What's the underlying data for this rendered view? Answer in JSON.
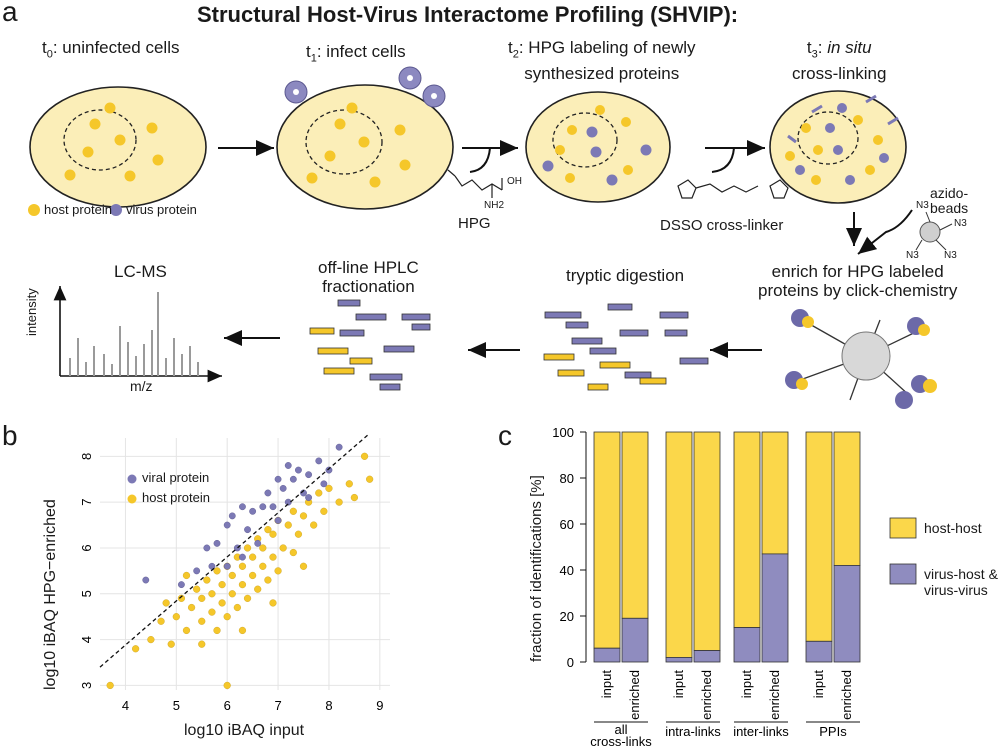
{
  "panel_a": {
    "letter": "a",
    "title": "Structural Host-Virus Interactome Profiling (SHVIP):",
    "steps": {
      "t0": {
        "sub": "0",
        "text": ": uninfected cells"
      },
      "t1": {
        "sub": "1",
        "text": ": infect cells"
      },
      "t2": {
        "sub": "2",
        "line1": ": HPG labeling of newly",
        "line2": "synthesized proteins"
      },
      "t3": {
        "sub": "3",
        "line1_pre": ": ",
        "line1_italic": "in situ",
        "line2": "cross-linking"
      }
    },
    "legend": {
      "host": "host protein",
      "virus": "virus protein"
    },
    "reagents": {
      "hpg": "HPG",
      "dsso": "DSSO cross-linker",
      "beads_line1": "azido-",
      "beads_line2": "beads",
      "oh": "OH",
      "nh2": "NH2",
      "n3": "N3"
    },
    "bottom_steps": {
      "enrich_line1": "enrich for HPG labeled",
      "enrich_line2": "proteins by click-chemistry",
      "tryptic": "tryptic digestion",
      "hplc_line1": "off-line HPLC",
      "hplc_line2": "fractionation",
      "lcms": "LC-MS",
      "lcms_x": "m/z",
      "lcms_y": "intensity"
    },
    "colors": {
      "cell": "#fbeeb8",
      "host": "#f5c72a",
      "virus": "#7c79b5"
    }
  },
  "panel_b": {
    "letter": "b",
    "xlabel": "log10 iBAQ input",
    "ylabel": "log10 iBAQ HPG−enriched",
    "legend": [
      "viral protein",
      "host protein"
    ]
  },
  "panel_c": {
    "letter": "c",
    "ylabel": "fraction of identifications [%]",
    "legend": [
      "host-host",
      "virus-host &",
      "virus-virus"
    ]
  },
  "chart_data": [
    {
      "type": "scatter",
      "xlabel": "log10 iBAQ input",
      "ylabel": "log10 iBAQ HPG−enriched",
      "xlim": [
        3.5,
        9.2
      ],
      "ylim": [
        2.9,
        8.4
      ],
      "xticks": [
        4,
        5,
        6,
        7,
        8,
        9
      ],
      "yticks": [
        3,
        4,
        5,
        6,
        7,
        8
      ],
      "grid": true,
      "legend_position": "top-left",
      "series": [
        {
          "name": "viral protein",
          "color": "#7c79b5",
          "points": [
            [
              4.4,
              5.3
            ],
            [
              5.1,
              5.2
            ],
            [
              5.6,
              6.0
            ],
            [
              5.8,
              6.1
            ],
            [
              6.0,
              6.5
            ],
            [
              6.1,
              6.7
            ],
            [
              6.3,
              6.9
            ],
            [
              6.4,
              6.4
            ],
            [
              6.5,
              6.8
            ],
            [
              6.7,
              6.9
            ],
            [
              6.8,
              7.2
            ],
            [
              6.9,
              6.9
            ],
            [
              7.0,
              7.5
            ],
            [
              7.1,
              7.3
            ],
            [
              7.2,
              7.0
            ],
            [
              7.3,
              7.5
            ],
            [
              7.4,
              7.7
            ],
            [
              7.5,
              7.2
            ],
            [
              7.6,
              7.6
            ],
            [
              7.8,
              7.9
            ],
            [
              7.9,
              7.4
            ],
            [
              8.0,
              7.7
            ],
            [
              8.2,
              8.2
            ],
            [
              5.7,
              5.6
            ],
            [
              6.2,
              6.0
            ],
            [
              6.6,
              6.1
            ],
            [
              7.0,
              6.6
            ],
            [
              6.3,
              5.8
            ],
            [
              5.4,
              5.5
            ],
            [
              7.6,
              7.1
            ],
            [
              7.2,
              7.8
            ],
            [
              6.0,
              5.6
            ]
          ]
        },
        {
          "name": "host protein",
          "color": "#f5c72a",
          "points": [
            [
              3.7,
              3.0
            ],
            [
              4.2,
              3.8
            ],
            [
              4.5,
              4.0
            ],
            [
              4.7,
              4.4
            ],
            [
              4.9,
              3.9
            ],
            [
              5.0,
              4.5
            ],
            [
              5.1,
              4.9
            ],
            [
              5.2,
              4.2
            ],
            [
              5.3,
              4.7
            ],
            [
              5.4,
              5.1
            ],
            [
              5.5,
              4.4
            ],
            [
              5.5,
              4.9
            ],
            [
              5.6,
              5.3
            ],
            [
              5.7,
              4.6
            ],
            [
              5.7,
              5.0
            ],
            [
              5.8,
              5.5
            ],
            [
              5.8,
              4.2
            ],
            [
              5.9,
              4.8
            ],
            [
              5.9,
              5.2
            ],
            [
              6.0,
              5.6
            ],
            [
              6.0,
              4.5
            ],
            [
              6.1,
              5.0
            ],
            [
              6.1,
              5.4
            ],
            [
              6.2,
              5.8
            ],
            [
              6.2,
              4.7
            ],
            [
              6.3,
              5.2
            ],
            [
              6.3,
              5.6
            ],
            [
              6.4,
              6.0
            ],
            [
              6.4,
              4.9
            ],
            [
              6.5,
              5.4
            ],
            [
              6.5,
              5.8
            ],
            [
              6.6,
              6.2
            ],
            [
              6.6,
              5.1
            ],
            [
              6.7,
              5.6
            ],
            [
              6.7,
              6.0
            ],
            [
              6.8,
              6.4
            ],
            [
              6.8,
              5.3
            ],
            [
              6.9,
              5.8
            ],
            [
              6.9,
              6.3
            ],
            [
              7.0,
              6.6
            ],
            [
              7.0,
              5.5
            ],
            [
              7.1,
              6.0
            ],
            [
              7.2,
              6.5
            ],
            [
              7.3,
              6.8
            ],
            [
              7.3,
              5.9
            ],
            [
              7.4,
              6.3
            ],
            [
              7.5,
              6.7
            ],
            [
              7.6,
              7.0
            ],
            [
              7.7,
              6.5
            ],
            [
              7.8,
              7.2
            ],
            [
              7.9,
              6.8
            ],
            [
              8.0,
              7.3
            ],
            [
              8.2,
              7.0
            ],
            [
              8.4,
              7.4
            ],
            [
              8.5,
              7.1
            ],
            [
              8.7,
              8.0
            ],
            [
              8.8,
              7.5
            ],
            [
              5.5,
              3.9
            ],
            [
              6.0,
              3.0
            ],
            [
              6.3,
              4.2
            ],
            [
              6.9,
              4.8
            ],
            [
              7.5,
              5.6
            ],
            [
              5.2,
              5.4
            ],
            [
              4.8,
              4.8
            ]
          ]
        }
      ],
      "trendline": {
        "x": [
          3.5,
          8.8
        ],
        "y": [
          3.4,
          8.5
        ],
        "style": "dashed"
      }
    },
    {
      "type": "bar",
      "stacked": true,
      "ylabel": "fraction of identifications [%]",
      "ylim": [
        0,
        100
      ],
      "yticks": [
        0,
        20,
        40,
        60,
        80,
        100
      ],
      "groups": [
        "all cross-links",
        "intra-links",
        "inter-links",
        "PPIs"
      ],
      "categories": [
        "input",
        "enriched",
        "input",
        "enriched",
        "input",
        "enriched",
        "input",
        "enriched"
      ],
      "legend_position": "right",
      "series": [
        {
          "name": "virus-host & virus-virus",
          "color": "#8f8cbf",
          "values": [
            6,
            19,
            2,
            5,
            15,
            47,
            9,
            42
          ]
        },
        {
          "name": "host-host",
          "color": "#fbd74a",
          "values": [
            94,
            81,
            98,
            95,
            85,
            53,
            91,
            58
          ]
        }
      ]
    }
  ]
}
